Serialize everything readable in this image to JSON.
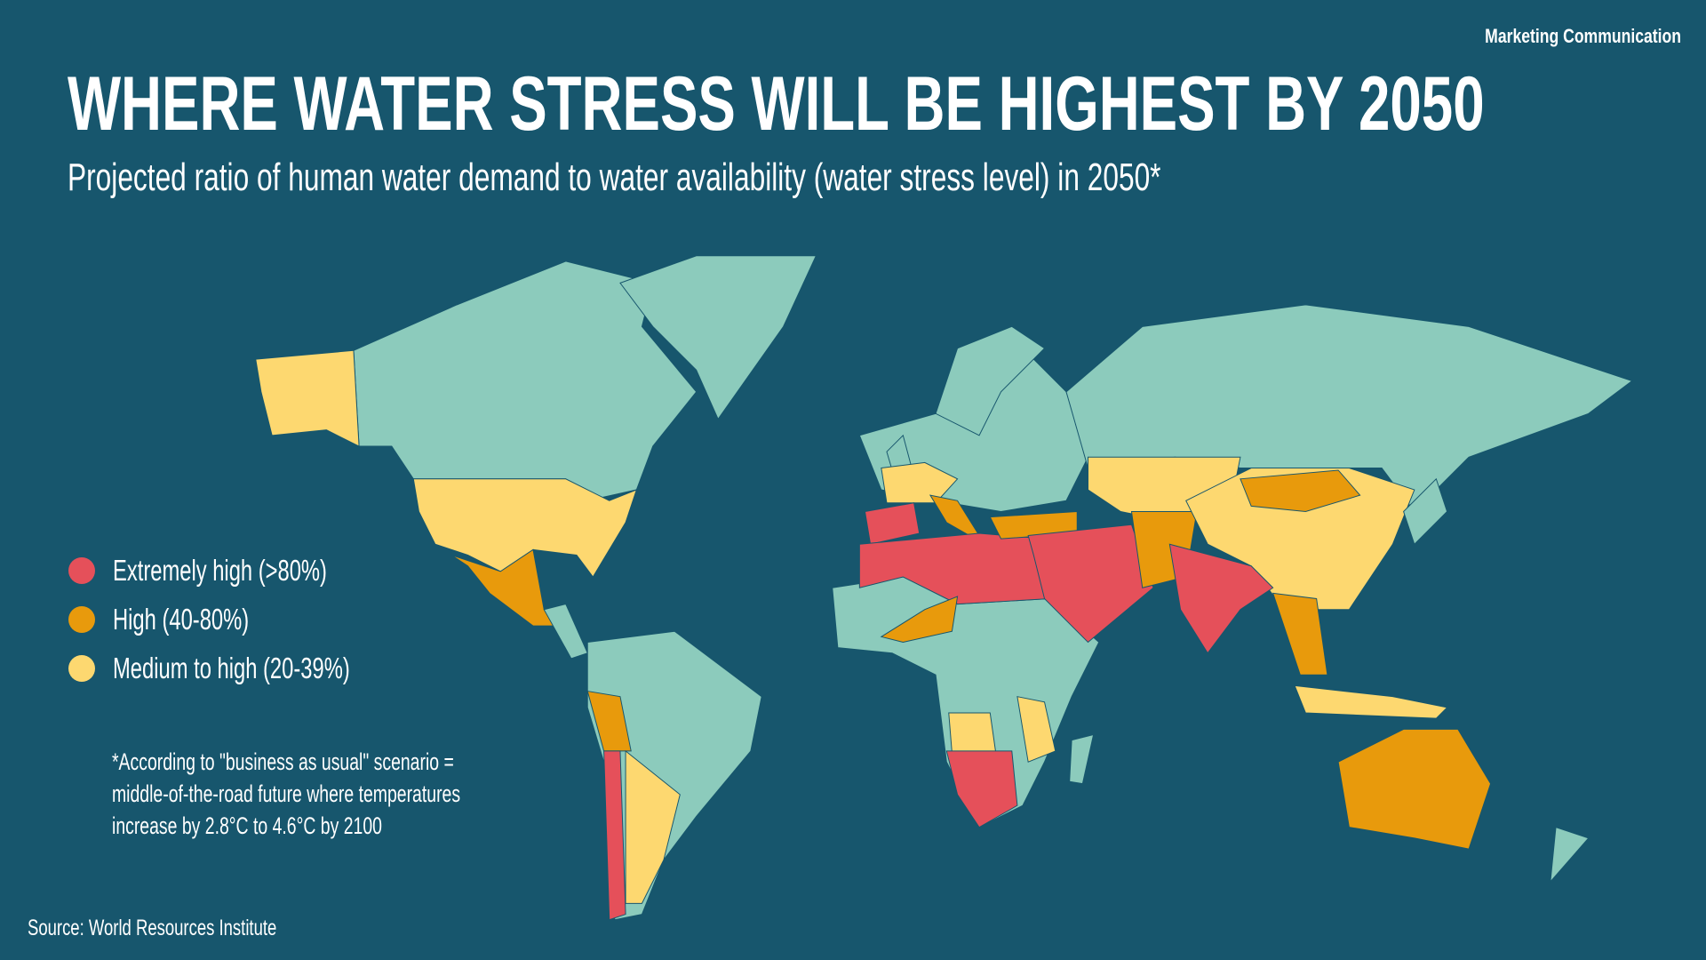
{
  "header": {
    "tag": "Marketing Communication",
    "title": "WHERE WATER STRESS WILL BE HIGHEST BY 2050",
    "subtitle": "Projected ratio of human water demand to water availability (water stress level) in 2050*"
  },
  "legend": {
    "items": [
      {
        "label": "Extremely high (>80%)",
        "color": "#e5505a"
      },
      {
        "label": "High (40-80%)",
        "color": "#e89a0c"
      },
      {
        "label": "Medium to high (20-39%)",
        "color": "#fdd870"
      }
    ]
  },
  "note": [
    "*According to \"business as usual\" scenario =",
    "middle-of-the-road future where temperatures",
    "increase by 2.8°C to 4.6°C by 2100"
  ],
  "source": "Source: World Resources Institute"
}
